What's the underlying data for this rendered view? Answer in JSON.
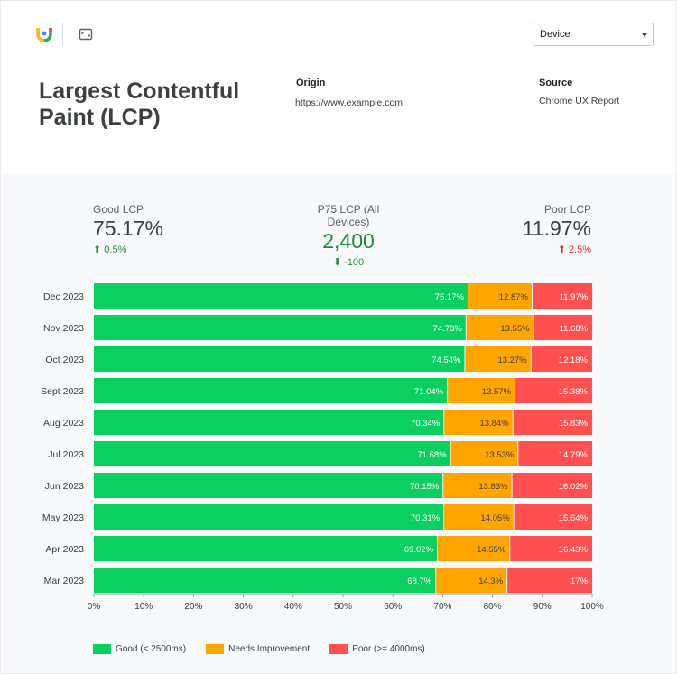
{
  "header": {
    "device_select": {
      "value": "Device"
    },
    "title": "Largest Contentful Paint (LCP)",
    "origin_label": "Origin",
    "origin_value": "https://www.example.com",
    "source_label": "Source",
    "source_value": "Chrome UX Report"
  },
  "kpis": {
    "good": {
      "label": "Good LCP",
      "value": "75.17%",
      "delta": "0.5%",
      "arrow": "⬆"
    },
    "p75": {
      "label": "P75 LCP (All Devices)",
      "value": "2,400",
      "delta": "-100",
      "arrow": "⬇"
    },
    "poor": {
      "label": "Poor LCP",
      "value": "11.97%",
      "delta": "2.5%",
      "arrow": "⬆"
    }
  },
  "colors": {
    "good": "#0ccf62",
    "needs_improvement": "#fea500",
    "poor": "#fe5050",
    "text": "#3c4043",
    "positive": "#1e8e3e",
    "negative": "#d93025"
  },
  "icons": [
    "logo-icon",
    "expand-icon",
    "chevron-down-icon"
  ],
  "chart_data": {
    "type": "bar",
    "orientation": "horizontal",
    "stacked": true,
    "normalized": true,
    "categories": [
      "Dec 2023",
      "Nov 2023",
      "Oct 2023",
      "Sept 2023",
      "Aug 2023",
      "Jul 2023",
      "Jun 2023",
      "May 2023",
      "Apr 2023",
      "Mar 2023"
    ],
    "series": [
      {
        "name": "Good (< 2500ms)",
        "values": [
          75.17,
          74.78,
          74.54,
          71.04,
          70.34,
          71.68,
          70.15,
          70.31,
          69.02,
          68.7
        ],
        "labels": [
          "75.17%",
          "74.78%",
          "74.54%",
          "71.04%",
          "70.34%",
          "71.68%",
          "70.15%",
          "70.31%",
          "69.02%",
          "68.7%"
        ]
      },
      {
        "name": "Needs Improvement",
        "values": [
          12.87,
          13.55,
          13.27,
          13.57,
          13.84,
          13.53,
          13.83,
          14.05,
          14.55,
          14.3
        ],
        "labels": [
          "12.87%",
          "13.55%",
          "13.27%",
          "13.57%",
          "13.84%",
          "13.53%",
          "13.83%",
          "14.05%",
          "14.55%",
          "14.3%"
        ]
      },
      {
        "name": "Poor (>= 4000ms)",
        "values": [
          11.97,
          11.68,
          12.18,
          15.38,
          15.83,
          14.79,
          16.02,
          15.64,
          16.43,
          17
        ],
        "labels": [
          "11.97%",
          "11.68%",
          "12.18%",
          "15.38%",
          "15.83%",
          "14.79%",
          "16.02%",
          "15.64%",
          "16.43%",
          "17%"
        ]
      }
    ],
    "xlim": [
      0,
      100
    ],
    "xticks": [
      "0%",
      "10%",
      "20%",
      "30%",
      "40%",
      "50%",
      "60%",
      "70%",
      "80%",
      "90%",
      "100%"
    ],
    "legend_position": "bottom-left",
    "grid": false
  }
}
